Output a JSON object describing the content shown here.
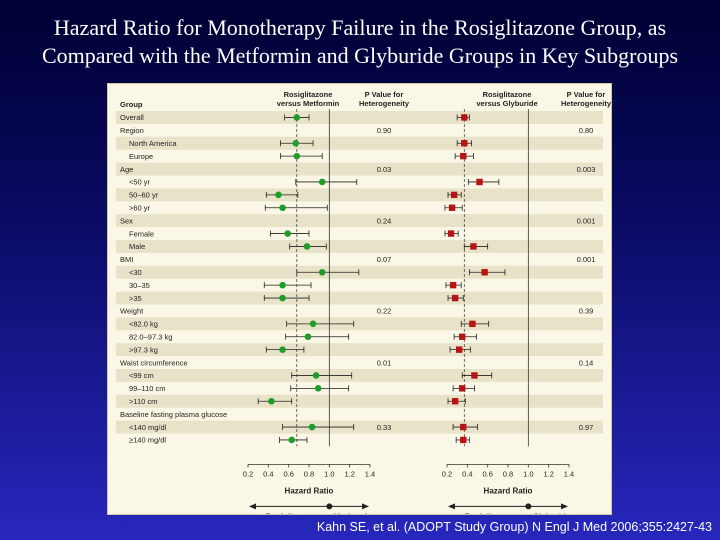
{
  "slide": {
    "title_line1": "Hazard Ratio for Monotherapy Failure in the Rosiglitazone Group, as",
    "title_line2": "Compared with the Metformin and Glyburide Groups in Key Subgroups",
    "citation": "Kahn SE, et al. (ADOPT Study Group) N Engl J Med 2006;355:2427-43"
  },
  "colors": {
    "metformin_marker": "#1e9e28",
    "glyburide_marker": "#b81414",
    "stripe": "#e8e2c8",
    "panel": "#fbf7e6"
  },
  "chart_data": {
    "type": "forest",
    "headers": {
      "group": "Group",
      "left_comparison": "Rosiglitazone versus Metformin",
      "left_p": "P Value for Heterogeneity",
      "right_comparison": "Rosiglitazone versus Glyburide",
      "right_p": "P Value for Heterogeneity"
    },
    "xlabel": "Hazard Ratio",
    "xlim": [
      0.2,
      1.4
    ],
    "ticks": [
      "0.2",
      "0.4",
      "0.6",
      "0.8",
      "1.0",
      "1.2",
      "1.4"
    ],
    "reference_line": 1.0,
    "left_favors": {
      "left": "Rosiglitazone Better",
      "right": "Metformin Better"
    },
    "right_favors": {
      "left": "Rosiglitazone Better",
      "right": "Glyburide Better"
    },
    "rows": [
      {
        "label": "Overall",
        "indent": false,
        "metformin": [
          0.68,
          0.56,
          0.8
        ],
        "glyburide": [
          0.37,
          0.3,
          0.42
        ]
      },
      {
        "label": "Region",
        "indent": false,
        "header": true,
        "p_metformin": "0.90",
        "p_glyburide": "0.80"
      },
      {
        "label": "North America",
        "indent": true,
        "metformin": [
          0.67,
          0.52,
          0.84
        ],
        "glyburide": [
          0.37,
          0.3,
          0.44
        ]
      },
      {
        "label": "Europe",
        "indent": true,
        "metformin": [
          0.68,
          0.52,
          0.93
        ],
        "glyburide": [
          0.36,
          0.28,
          0.46
        ]
      },
      {
        "label": "Age",
        "indent": false,
        "header": true,
        "p_metformin": "0.03",
        "p_glyburide": "0.003"
      },
      {
        "label": "<50 yr",
        "indent": true,
        "metformin": [
          0.93,
          0.67,
          1.27
        ],
        "glyburide": [
          0.52,
          0.41,
          0.71
        ]
      },
      {
        "label": "50–60 yr",
        "indent": true,
        "metformin": [
          0.5,
          0.38,
          0.69
        ],
        "glyburide": [
          0.27,
          0.21,
          0.34
        ]
      },
      {
        "label": ">60 yr",
        "indent": true,
        "metformin": [
          0.54,
          0.37,
          0.98
        ],
        "glyburide": [
          0.25,
          0.18,
          0.35
        ]
      },
      {
        "label": "Sex",
        "indent": false,
        "header": true,
        "p_metformin": "0.24",
        "p_glyburide": "0.001"
      },
      {
        "label": "Female",
        "indent": true,
        "metformin": [
          0.59,
          0.42,
          0.8
        ],
        "glyburide": [
          0.24,
          0.18,
          0.31
        ]
      },
      {
        "label": "Male",
        "indent": true,
        "metformin": [
          0.78,
          0.61,
          0.97
        ],
        "glyburide": [
          0.46,
          0.37,
          0.6
        ]
      },
      {
        "label": "BMI",
        "indent": false,
        "header": true,
        "p_metformin": "0.07",
        "p_glyburide": "0.001"
      },
      {
        "label": "<30",
        "indent": true,
        "metformin": [
          0.93,
          0.68,
          1.29
        ],
        "glyburide": [
          0.57,
          0.42,
          0.77
        ]
      },
      {
        "label": "30–35",
        "indent": true,
        "metformin": [
          0.54,
          0.36,
          0.82
        ],
        "glyburide": [
          0.26,
          0.19,
          0.34
        ]
      },
      {
        "label": ">35",
        "indent": true,
        "metformin": [
          0.54,
          0.36,
          0.8
        ],
        "glyburide": [
          0.28,
          0.21,
          0.36
        ]
      },
      {
        "label": "Weight",
        "indent": false,
        "header": true,
        "p_metformin": "0.22",
        "p_glyburide": "0.39"
      },
      {
        "label": "<82.0 kg",
        "indent": true,
        "metformin": [
          0.84,
          0.58,
          1.24
        ],
        "glyburide": [
          0.45,
          0.34,
          0.61
        ]
      },
      {
        "label": "82.0–97.3 kg",
        "indent": true,
        "metformin": [
          0.79,
          0.57,
          1.19
        ],
        "glyburide": [
          0.35,
          0.27,
          0.49
        ]
      },
      {
        "label": ">97.3 kg",
        "indent": true,
        "metformin": [
          0.54,
          0.38,
          0.75
        ],
        "glyburide": [
          0.32,
          0.23,
          0.43
        ]
      },
      {
        "label": "Waist circumference",
        "indent": false,
        "header": true,
        "p_metformin": "0.01",
        "p_glyburide": "0.14"
      },
      {
        "label": "<99 cm",
        "indent": true,
        "metformin": [
          0.87,
          0.63,
          1.22
        ],
        "glyburide": [
          0.47,
          0.35,
          0.64
        ]
      },
      {
        "label": "99–110 cm",
        "indent": true,
        "metformin": [
          0.89,
          0.62,
          1.19
        ],
        "glyburide": [
          0.35,
          0.26,
          0.47
        ]
      },
      {
        "label": ">110 cm",
        "indent": true,
        "metformin": [
          0.43,
          0.3,
          0.63
        ],
        "glyburide": [
          0.28,
          0.21,
          0.38
        ]
      },
      {
        "label": "Baseline fasting plasma glucose",
        "indent": false,
        "header": true
      },
      {
        "label": "<140 mg/dl",
        "indent": true,
        "metformin": [
          0.83,
          0.54,
          1.24
        ],
        "p_metformin": "0.33",
        "glyburide": [
          0.36,
          0.26,
          0.5
        ],
        "p_glyburide": "0.97"
      },
      {
        "label": "≥140 mg/dl",
        "indent": true,
        "metformin": [
          0.63,
          0.51,
          0.78
        ],
        "glyburide": [
          0.36,
          0.29,
          0.42
        ]
      }
    ]
  }
}
